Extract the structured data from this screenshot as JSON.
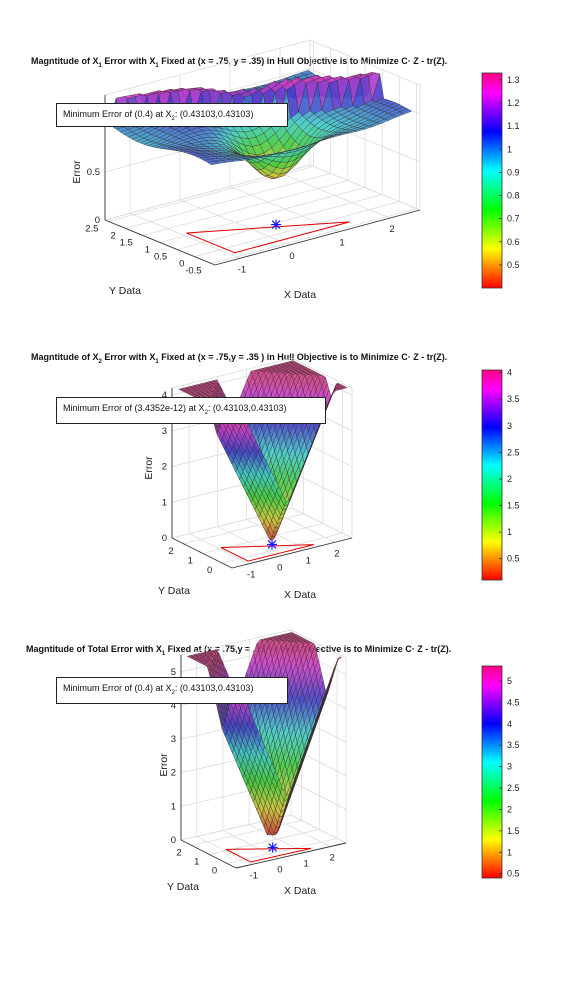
{
  "colormap": [
    "#ff0000",
    "#ff8000",
    "#ffff00",
    "#80ff00",
    "#00ff00",
    "#00ff80",
    "#00ffff",
    "#0080ff",
    "#0000ff",
    "#8000ff",
    "#ff00ff",
    "#ff0080"
  ],
  "chart_data": [
    {
      "type": "surface",
      "title_parts": [
        "Magntitude of X",
        "1",
        " Error with X",
        "1",
        " Fixed at (x = .75, y = .35) in Hull Objective is to Minimize C· Z - tr(Z)."
      ],
      "annotation_parts": [
        "Minimum Error of (0.4) at X",
        "2",
        ": (0.43103,0.43103)"
      ],
      "xlabel": "X Data",
      "ylabel": "Y Data",
      "zlabel": "Error",
      "x_ticks": [
        "-1",
        "0",
        "1",
        "2"
      ],
      "y_ticks": [
        "-0.5",
        "0",
        "0.5",
        "1",
        "1.5",
        "2",
        "2.5"
      ],
      "z_ticks": [
        "0",
        "0.5",
        "1"
      ],
      "colorbar_ticks": [
        "0.5",
        "0.6",
        "0.7",
        "0.8",
        "0.9",
        "1",
        "1.1",
        "1.2",
        "1.3"
      ],
      "colorbar_range": [
        0.4,
        1.33
      ],
      "minimum_marker": {
        "x": 0.43103,
        "y": 0.43103,
        "value": 0.4
      }
    },
    {
      "type": "surface",
      "title_parts": [
        "Magntitude of X",
        "2",
        " Error with X",
        "1",
        " Fixed at (x = .75,y = .35 ) in Hull Objective is to Minimize C· Z - tr(Z)."
      ],
      "annotation_parts": [
        "Minimum Error of (3.4352e-12) at X",
        "2",
        ": (0.43103,0.43103)"
      ],
      "xlabel": "X Data",
      "ylabel": "Y Data",
      "zlabel": "Error",
      "x_ticks": [
        "-1",
        "0",
        "1",
        "2"
      ],
      "y_ticks": [
        "0",
        "1",
        "2"
      ],
      "z_ticks": [
        "0",
        "1",
        "2",
        "3",
        "4"
      ],
      "colorbar_ticks": [
        "0.5",
        "1",
        "1.5",
        "2",
        "2.5",
        "3",
        "3.5",
        "4"
      ],
      "colorbar_range": [
        0.1,
        4.05
      ],
      "minimum_marker": {
        "x": 0.43103,
        "y": 0.43103,
        "value": 3.4352e-12
      }
    },
    {
      "type": "surface",
      "title_parts": [
        "Magntitude of Total Error with X",
        "1",
        " Fixed at (x = .75,y = .35) in Hull Objective is to Minimize C· Z - tr(Z)."
      ],
      "annotation_parts": [
        "Minimum Error of (0.4) at X",
        "2",
        ": (0.43103,0.43103)"
      ],
      "xlabel": "X Data",
      "ylabel": "Y Data",
      "zlabel": "Error",
      "x_ticks": [
        "-1",
        "0",
        "1",
        "2"
      ],
      "y_ticks": [
        "0",
        "1",
        "2"
      ],
      "z_ticks": [
        "0",
        "1",
        "2",
        "3",
        "4",
        "5"
      ],
      "colorbar_ticks": [
        "0.5",
        "1",
        "1.5",
        "2",
        "2.5",
        "3",
        "3.5",
        "4",
        "4.5",
        "5"
      ],
      "colorbar_range": [
        0.4,
        5.35
      ],
      "minimum_marker": {
        "x": 0.43103,
        "y": 0.43103,
        "value": 0.4
      }
    }
  ]
}
